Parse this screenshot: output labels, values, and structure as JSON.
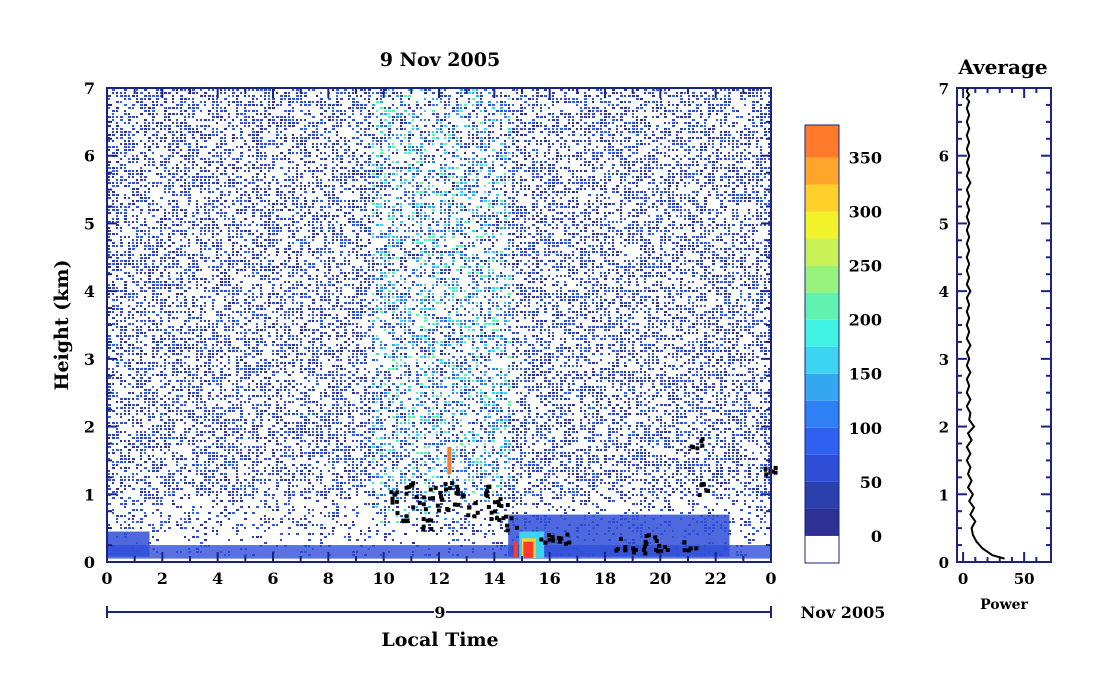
{
  "chart_data": [
    {
      "type": "heatmap",
      "title": "9 Nov 2005",
      "xlabel": "Local Time",
      "ylabel": "Height (km)",
      "x_ticks": [
        "0",
        "2",
        "4",
        "6",
        "8",
        "10",
        "12",
        "14",
        "16",
        "18",
        "20",
        "22",
        "0"
      ],
      "y_ticks": [
        "0",
        "1",
        "2",
        "3",
        "4",
        "5",
        "6",
        "7"
      ],
      "xlim": [
        0,
        24
      ],
      "ylim": [
        0,
        7
      ],
      "date_axis": {
        "day_label": "9",
        "month_label": "Nov 2005"
      },
      "colorbar": {
        "ticks": [
          "0",
          "50",
          "100",
          "150",
          "200",
          "250",
          "300",
          "350"
        ],
        "range": [
          -25,
          380
        ],
        "levels": [
          -25,
          0,
          25,
          50,
          75,
          100,
          125,
          150,
          175,
          200,
          225,
          250,
          275,
          300,
          325,
          350,
          380
        ],
        "colors": [
          "#ffffff",
          "#2e3192",
          "#2b3fad",
          "#2f4fd8",
          "#3060f0",
          "#2f7ff5",
          "#34a7f0",
          "#3cd4f2",
          "#3ff2e2",
          "#61f2b0",
          "#97f27e",
          "#c9f257",
          "#f2f22a",
          "#ffd02a",
          "#ffa52a",
          "#ff7a2a",
          "#ff3a2a"
        ]
      },
      "grid": false
    },
    {
      "type": "line",
      "title": "Average",
      "xlabel": "Power",
      "ylabel": "",
      "x_ticks": [
        "0",
        "50"
      ],
      "y_ticks": [
        "0",
        "1",
        "2",
        "3",
        "4",
        "5",
        "6",
        "7"
      ],
      "xlim": [
        -5,
        72
      ],
      "ylim": [
        0,
        7
      ],
      "series": [
        {
          "x": [
            34,
            24,
            16,
            11,
            8,
            7,
            10,
            6,
            9,
            5,
            8,
            4,
            7,
            4,
            6,
            3,
            6,
            3,
            7,
            4,
            9,
            5,
            6,
            3,
            6,
            3,
            5,
            3,
            6,
            3,
            5,
            3,
            6,
            3,
            5,
            3,
            5,
            3,
            5,
            3,
            6,
            3,
            5,
            3,
            5,
            3,
            5,
            3,
            5,
            3,
            5,
            3,
            5,
            3,
            5,
            3,
            6,
            3,
            5,
            3,
            5,
            3,
            5,
            3,
            5,
            3,
            5,
            3,
            5,
            3,
            5,
            3,
            4
          ],
          "y": [
            0.05,
            0.1,
            0.2,
            0.3,
            0.4,
            0.5,
            0.6,
            0.7,
            0.8,
            0.9,
            1.0,
            1.1,
            1.2,
            1.3,
            1.4,
            1.5,
            1.6,
            1.7,
            1.8,
            1.9,
            2.0,
            2.1,
            2.2,
            2.3,
            2.4,
            2.5,
            2.6,
            2.7,
            2.8,
            2.9,
            3.0,
            3.1,
            3.2,
            3.3,
            3.4,
            3.5,
            3.6,
            3.7,
            3.8,
            3.9,
            4.0,
            4.1,
            4.2,
            4.3,
            4.4,
            4.5,
            4.6,
            4.7,
            4.8,
            4.9,
            5.0,
            5.1,
            5.2,
            5.3,
            5.4,
            5.5,
            5.6,
            5.7,
            5.8,
            5.9,
            6.0,
            6.1,
            6.2,
            6.3,
            6.4,
            6.5,
            6.6,
            6.7,
            6.8,
            6.85,
            6.9,
            6.95,
            7.0
          ]
        }
      ]
    }
  ]
}
